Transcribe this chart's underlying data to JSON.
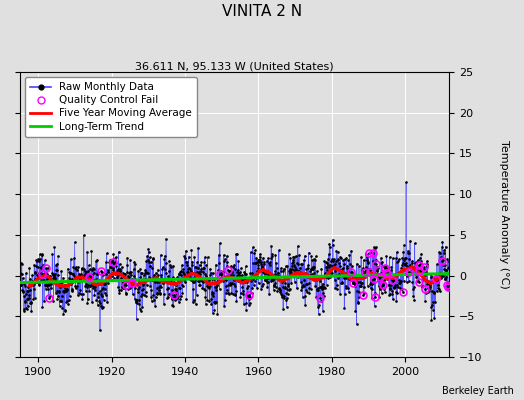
{
  "title": "VINITA 2 N",
  "subtitle": "36.611 N, 95.133 W (United States)",
  "right_ylabel": "Temperature Anomaly (°C)",
  "footer": "Berkeley Earth",
  "xlim": [
    1895,
    2012
  ],
  "ylim": [
    -10,
    25
  ],
  "yticks": [
    -10,
    -5,
    0,
    5,
    10,
    15,
    20,
    25
  ],
  "xticks": [
    1900,
    1920,
    1940,
    1960,
    1980,
    2000
  ],
  "seed": 42,
  "year_start": 1895.0,
  "year_end": 2011.9,
  "months_per_year": 12,
  "raw_color": "#4444FF",
  "dot_color": "#000000",
  "qc_color": "#FF00FF",
  "moving_avg_color": "#FF0000",
  "trend_color": "#00CC00",
  "plot_bg_color": "#E0E0E0",
  "fig_bg_color": "#E0E0E0",
  "grid_color": "#FFFFFF",
  "title_fontsize": 11,
  "subtitle_fontsize": 8,
  "tick_fontsize": 8,
  "ylabel_fontsize": 8,
  "legend_fontsize": 7.5,
  "footer_fontsize": 7
}
